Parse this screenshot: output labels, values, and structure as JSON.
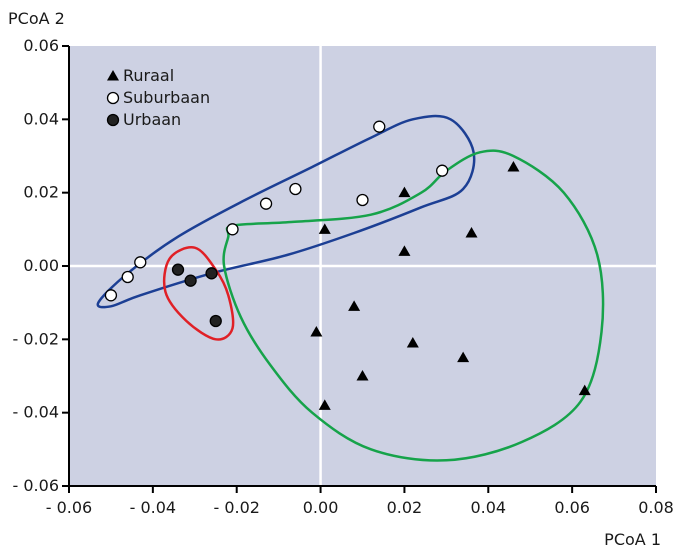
{
  "chart_data": {
    "type": "scatter",
    "xlabel": "PCoA 1",
    "ylabel": "PCoA 2",
    "xlim": [
      -0.06,
      0.08
    ],
    "ylim": [
      -0.06,
      0.06
    ],
    "xticks": [
      "- 0.06",
      "- 0.04",
      "- 0.02",
      "0.00",
      "0.02",
      "0.04",
      "0.06",
      "0.08"
    ],
    "yticks": [
      "0.06",
      "0.04",
      "0.02",
      "0.00",
      "- 0.02",
      "- 0.04",
      "- 0.06"
    ],
    "grid": false,
    "zero_lines": true,
    "legend_position": "top-left",
    "background_color": "#cdd1e3",
    "series": [
      {
        "name": "Ruraal",
        "marker": "triangle",
        "color": "#000000",
        "points": [
          {
            "x": 0.001,
            "y": 0.01
          },
          {
            "x": 0.02,
            "y": 0.02
          },
          {
            "x": 0.046,
            "y": 0.027
          },
          {
            "x": 0.036,
            "y": 0.009
          },
          {
            "x": 0.02,
            "y": 0.004
          },
          {
            "x": 0.008,
            "y": -0.011
          },
          {
            "x": -0.001,
            "y": -0.018
          },
          {
            "x": 0.022,
            "y": -0.021
          },
          {
            "x": 0.034,
            "y": -0.025
          },
          {
            "x": 0.01,
            "y": -0.03
          },
          {
            "x": 0.001,
            "y": -0.038
          },
          {
            "x": 0.063,
            "y": -0.034
          }
        ]
      },
      {
        "name": "Suburbaan",
        "marker": "open-circle",
        "color": "#ffffff",
        "points": [
          {
            "x": -0.05,
            "y": -0.008
          },
          {
            "x": -0.046,
            "y": -0.003
          },
          {
            "x": -0.043,
            "y": 0.001
          },
          {
            "x": -0.021,
            "y": 0.01
          },
          {
            "x": -0.013,
            "y": 0.017
          },
          {
            "x": -0.006,
            "y": 0.021
          },
          {
            "x": 0.01,
            "y": 0.018
          },
          {
            "x": 0.014,
            "y": 0.038
          },
          {
            "x": 0.029,
            "y": 0.026
          }
        ]
      },
      {
        "name": "Urbaan",
        "marker": "filled-circle",
        "color": "#222222",
        "points": [
          {
            "x": -0.034,
            "y": -0.001
          },
          {
            "x": -0.031,
            "y": -0.004
          },
          {
            "x": -0.026,
            "y": -0.002
          },
          {
            "x": -0.025,
            "y": -0.015
          }
        ]
      }
    ],
    "enclosures": [
      {
        "group": "Suburbaan",
        "color": "#1c3f94"
      },
      {
        "group": "Urbaan",
        "color": "#e02026"
      },
      {
        "group": "Ruraal",
        "color": "#16a34a"
      }
    ]
  }
}
